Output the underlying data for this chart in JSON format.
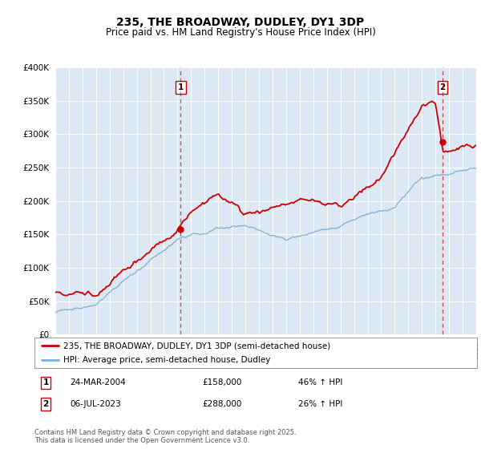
{
  "title": "235, THE BROADWAY, DUDLEY, DY1 3DP",
  "subtitle": "Price paid vs. HM Land Registry's House Price Index (HPI)",
  "ylim": [
    0,
    400000
  ],
  "xlim_start": 1995,
  "xlim_end": 2026,
  "red_color": "#cc0000",
  "blue_color": "#7dadd4",
  "marker1_x": 2004.23,
  "marker1_y": 158000,
  "marker2_x": 2023.52,
  "marker2_y": 288000,
  "legend_line1": "235, THE BROADWAY, DUDLEY, DY1 3DP (semi-detached house)",
  "legend_line2": "HPI: Average price, semi-detached house, Dudley",
  "annotation1_date": "24-MAR-2004",
  "annotation1_price": "£158,000",
  "annotation1_hpi": "46% ↑ HPI",
  "annotation2_date": "06-JUL-2023",
  "annotation2_price": "£288,000",
  "annotation2_hpi": "26% ↑ HPI",
  "footer": "Contains HM Land Registry data © Crown copyright and database right 2025.\nThis data is licensed under the Open Government Licence v3.0.",
  "background_color": "#dce8f3"
}
